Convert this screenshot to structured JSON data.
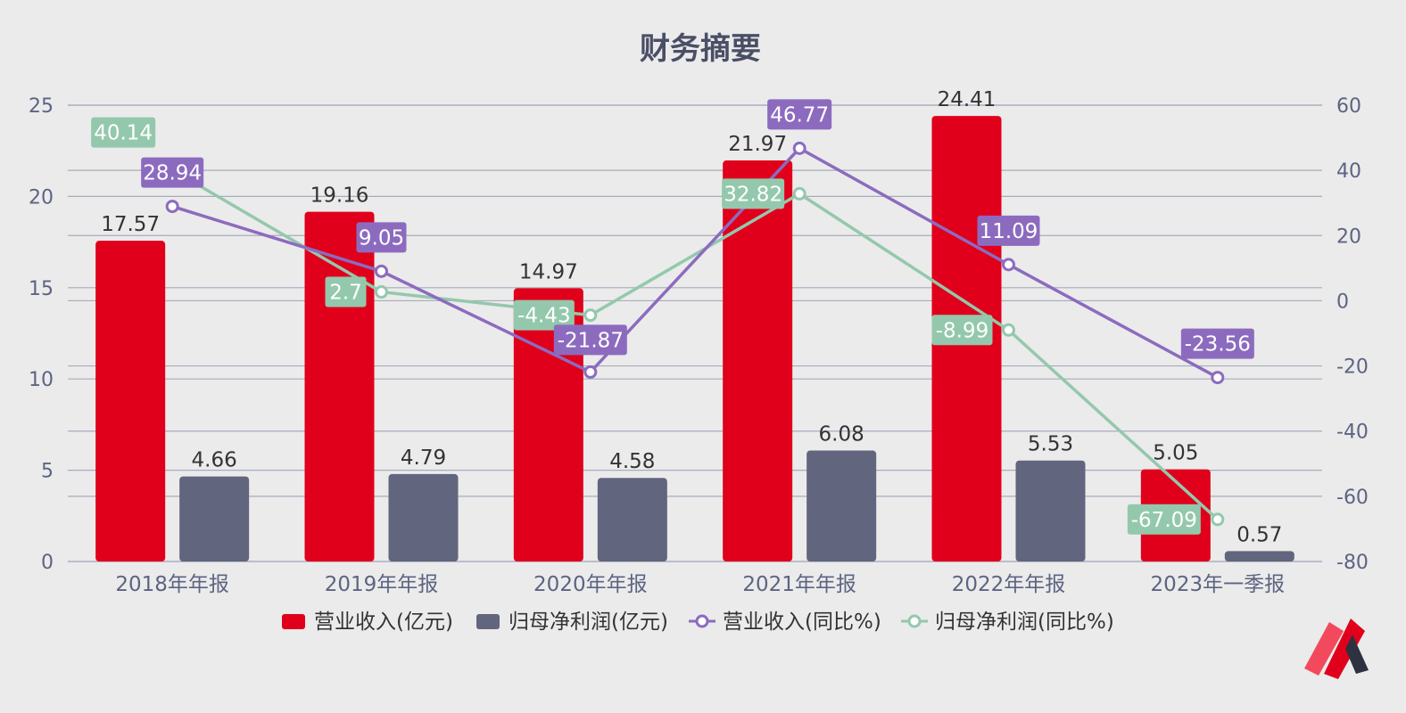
{
  "colors": {
    "revenue_bar": "#e0001b",
    "profit_bar": "#61657e",
    "revenue_line": "#8c6bbf",
    "profit_line": "#94c8ac",
    "grid": "#a9abbd",
    "axis_text": "#5d6482",
    "background": "#ebebeb"
  },
  "logo": {
    "icon": "brand-logo-icon"
  },
  "chart_data": {
    "type": "bar",
    "title": "财务摘要",
    "categories": [
      "2018年年报",
      "2019年年报",
      "2020年年报",
      "2021年年报",
      "2022年年报",
      "2023年一季报"
    ],
    "left_axis": {
      "ylim": [
        0,
        25
      ],
      "ticks": [
        "0",
        "5",
        "10",
        "15",
        "20",
        "25"
      ]
    },
    "right_axis": {
      "ylim": [
        -80,
        60
      ],
      "ticks": [
        "-80",
        "-60",
        "-40",
        "-20",
        "0",
        "20",
        "40",
        "60"
      ]
    },
    "grid": true,
    "legend_position": "bottom",
    "series": [
      {
        "name": "营业收入(亿元)",
        "type": "bar",
        "axis": "left",
        "values": [
          17.57,
          19.16,
          14.97,
          21.97,
          24.41,
          5.05
        ]
      },
      {
        "name": "归母净利润(亿元)",
        "type": "bar",
        "axis": "left",
        "values": [
          4.66,
          4.79,
          4.58,
          6.08,
          5.53,
          0.57
        ]
      },
      {
        "name": "营业收入(同比%)",
        "type": "line",
        "axis": "right",
        "values": [
          28.94,
          9.05,
          -21.87,
          46.77,
          11.09,
          -23.56
        ]
      },
      {
        "name": "归母净利润(同比%)",
        "type": "line",
        "axis": "right",
        "values": [
          40.14,
          2.7,
          -4.43,
          32.82,
          -8.99,
          -67.09
        ]
      }
    ]
  }
}
